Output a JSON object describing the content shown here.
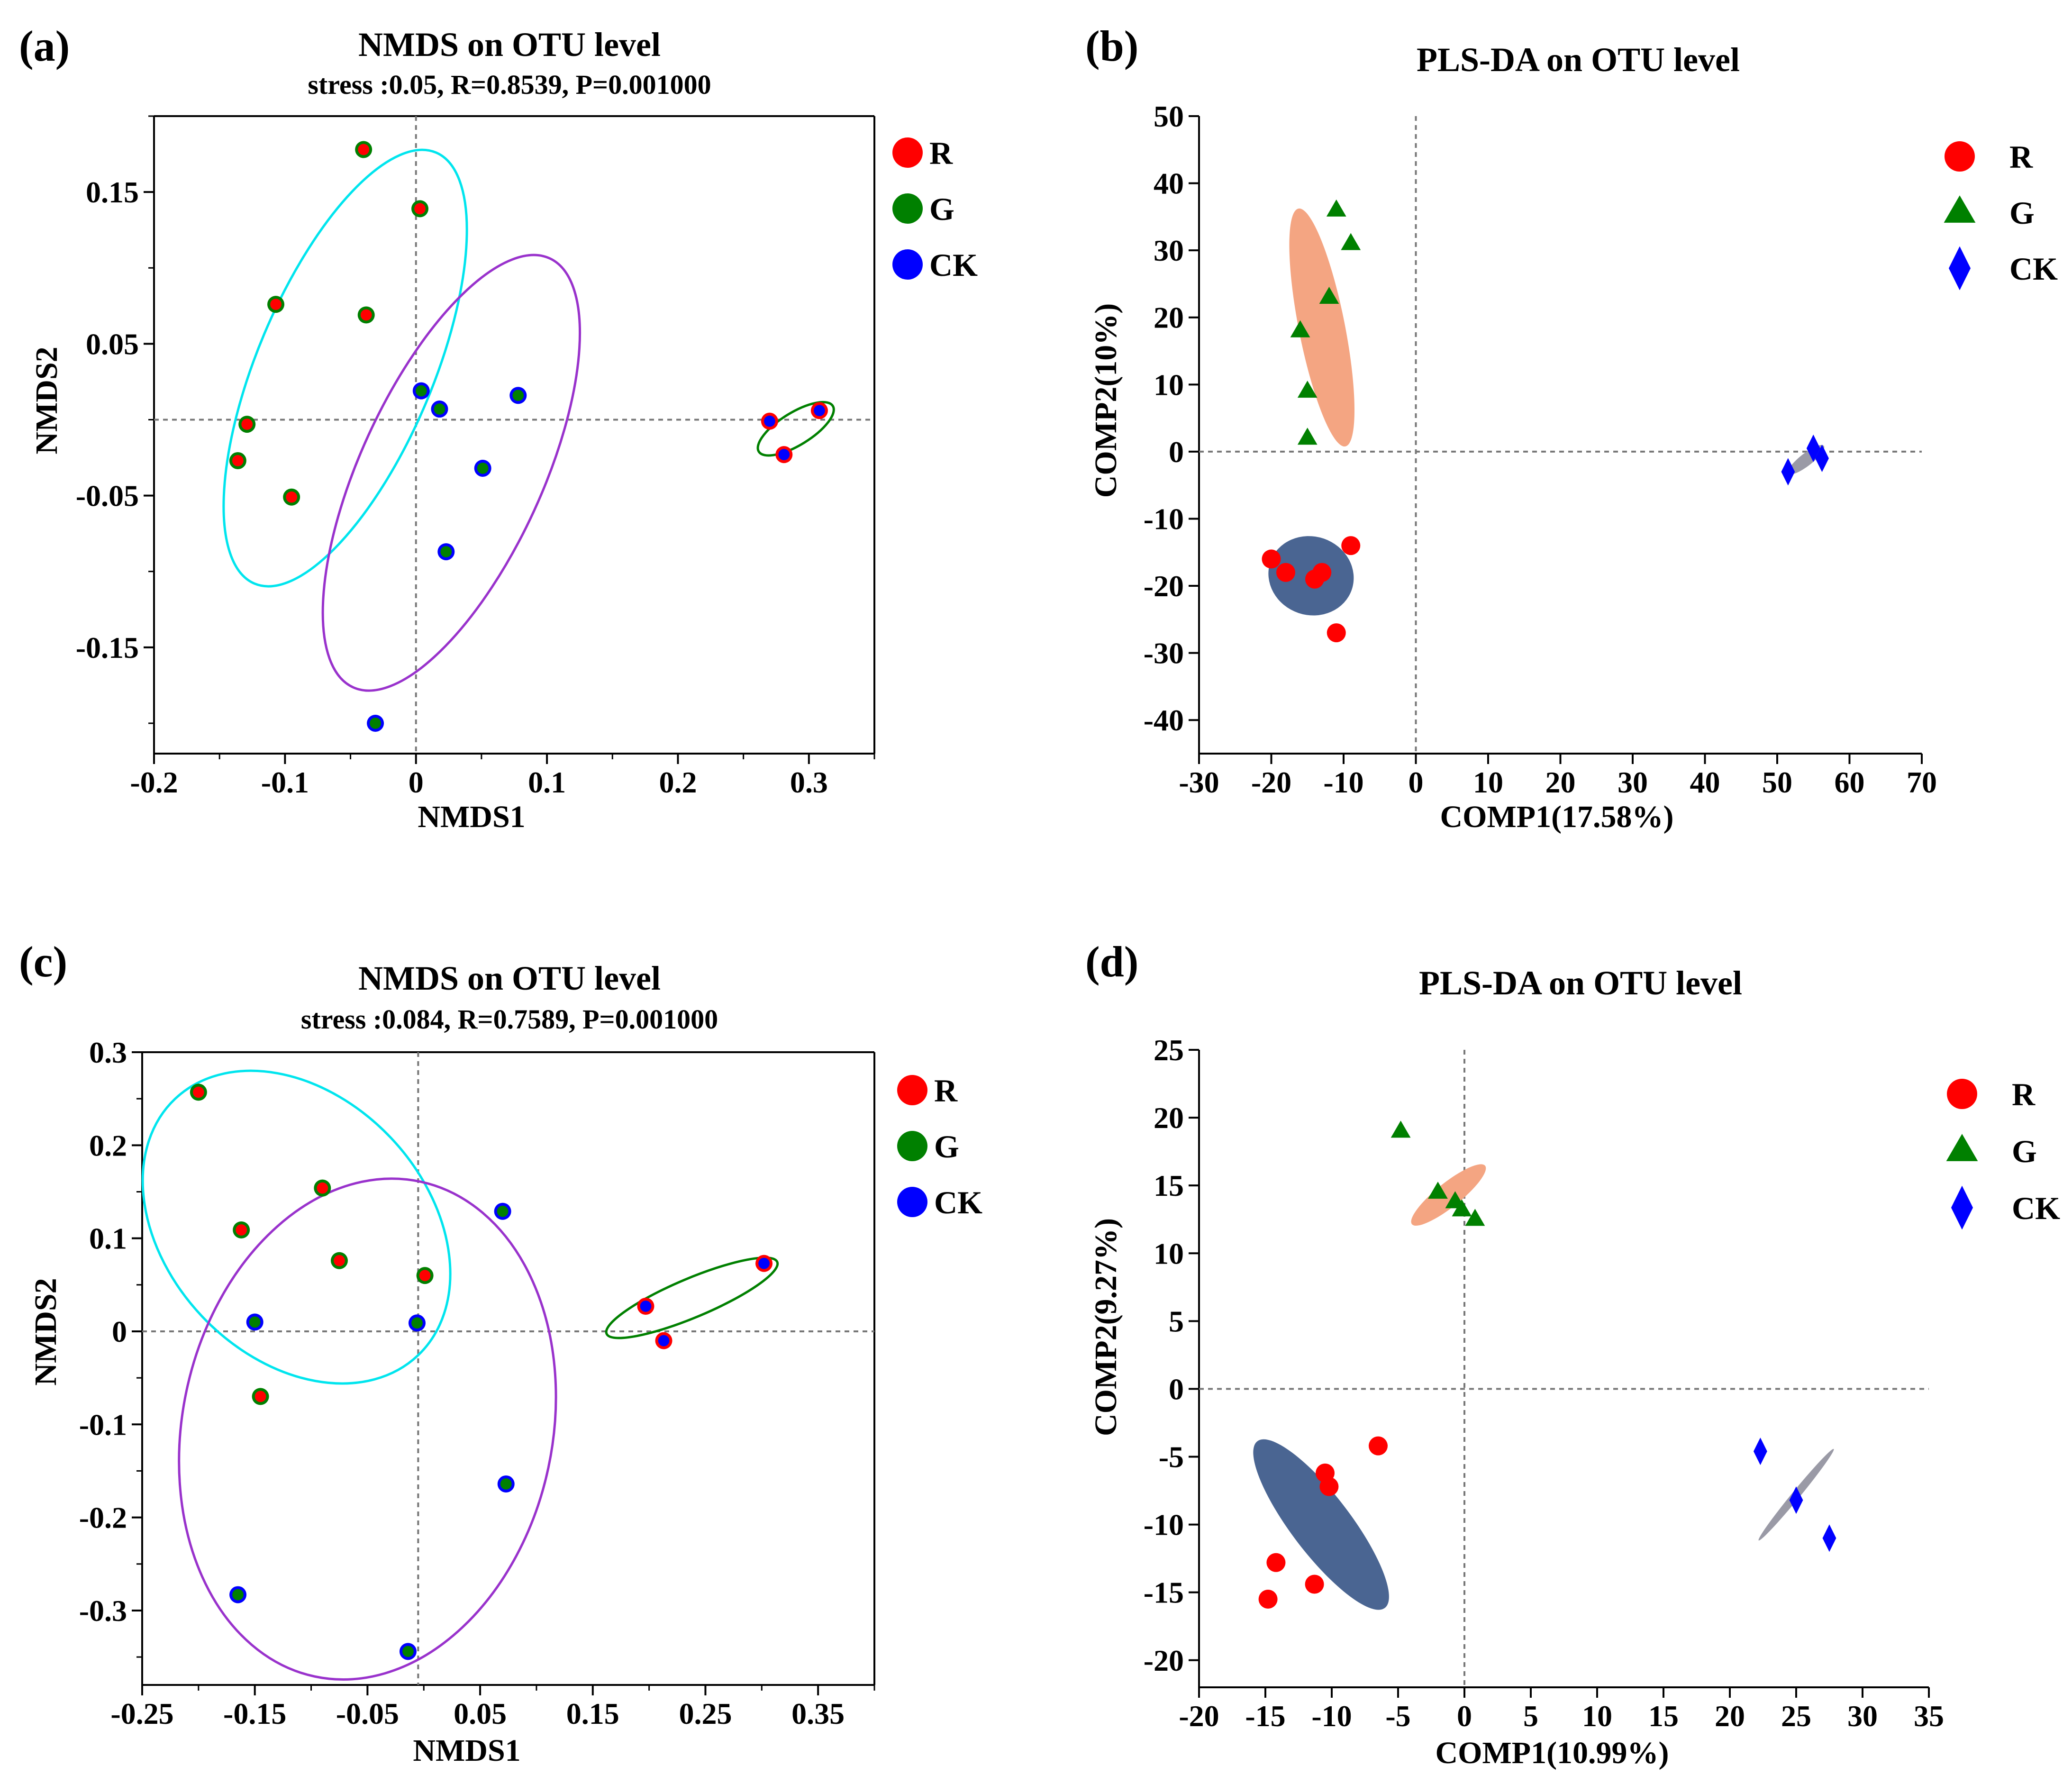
{
  "panels": [
    {
      "id": "a",
      "panel_label": "(a)",
      "title": "NMDS on OTU level",
      "subtitle": "stress :0.05, R=0.8539, P=0.001000",
      "xlabel": "NMDS1",
      "ylabel": "NMDS2",
      "xlim": [
        -0.2,
        0.35
      ],
      "ylim": [
        -0.22,
        0.2
      ],
      "xticks": [
        -0.2,
        -0.1,
        0,
        0.1,
        0.2,
        0.3
      ],
      "xtick_labels": [
        "-0.2",
        "-0.1",
        "0",
        "0.1",
        "0.2",
        "0.3"
      ],
      "yticks": [
        0.15,
        0.05,
        -0.05,
        -0.15
      ],
      "ytick_labels": [
        "0.15",
        "0.05",
        "-0.05",
        "-0.15"
      ],
      "legend": [
        {
          "label": "R",
          "fill": "#ff0000",
          "marker": "circle"
        },
        {
          "label": "G",
          "fill": "#008000",
          "marker": "circle"
        },
        {
          "label": "CK",
          "fill": "#0000ff",
          "marker": "circle"
        }
      ]
    },
    {
      "id": "b",
      "panel_label": "(b)",
      "title": "PLS-DA on OTU level",
      "xlabel": "COMP1(17.58%)",
      "ylabel": "COMP2(10%)",
      "xlim": [
        -30,
        70
      ],
      "ylim": [
        -45,
        50
      ],
      "xticks": [
        -30,
        -20,
        -10,
        0,
        10,
        20,
        30,
        40,
        50,
        60,
        70
      ],
      "xtick_labels": [
        "-30",
        "-20",
        "-10",
        "0",
        "10",
        "20",
        "30",
        "40",
        "50",
        "60",
        "70"
      ],
      "yticks": [
        50,
        40,
        30,
        20,
        10,
        0,
        -10,
        -20,
        -30,
        -40
      ],
      "ytick_labels": [
        "50",
        "40",
        "30",
        "20",
        "10",
        "0",
        "-10",
        "-20",
        "-30",
        "-40"
      ],
      "legend": [
        {
          "label": "R",
          "fill": "#ff0000",
          "marker": "circle"
        },
        {
          "label": "G",
          "fill": "#008000",
          "marker": "triangle"
        },
        {
          "label": "CK",
          "fill": "#0000ff",
          "marker": "diamond"
        }
      ]
    },
    {
      "id": "c",
      "panel_label": "(c)",
      "title": "NMDS on OTU level",
      "subtitle": "stress :0.084, R=0.7589, P=0.001000",
      "xlabel": "NMDS1",
      "ylabel": "NMDS2",
      "xlim": [
        -0.25,
        0.4
      ],
      "ylim": [
        -0.38,
        0.3
      ],
      "xticks": [
        -0.25,
        -0.15,
        -0.05,
        0.05,
        0.15,
        0.25,
        0.35
      ],
      "xtick_labels": [
        "-0.25",
        "-0.15",
        "-0.05",
        "0.05",
        "0.15",
        "0.25",
        "0.35"
      ],
      "yticks": [
        0.3,
        0.2,
        0.1,
        0,
        -0.1,
        -0.2,
        -0.3
      ],
      "ytick_labels": [
        "0.3",
        "0.2",
        "0.1",
        "0",
        "-0.1",
        "-0.2",
        "-0.3"
      ],
      "legend": [
        {
          "label": "R",
          "fill": "#ff0000",
          "marker": "circle"
        },
        {
          "label": "G",
          "fill": "#008000",
          "marker": "circle"
        },
        {
          "label": "CK",
          "fill": "#0000ff",
          "marker": "circle"
        }
      ]
    },
    {
      "id": "d",
      "panel_label": "(d)",
      "title": "PLS-DA on OTU level",
      "xlabel": "COMP1(10.99%)",
      "ylabel": "COMP2(9.27%)",
      "xlim": [
        -20,
        35
      ],
      "ylim": [
        -22,
        25
      ],
      "xticks": [
        -20,
        -15,
        -10,
        -5,
        0,
        5,
        10,
        15,
        20,
        25,
        30,
        35
      ],
      "xtick_labels": [
        "-20",
        "-15",
        "-10",
        "-5",
        "0",
        "5",
        "10",
        "15",
        "20",
        "25",
        "30",
        "35"
      ],
      "yticks": [
        25,
        20,
        15,
        10,
        5,
        0,
        -5,
        -10,
        -15,
        -20
      ],
      "ytick_labels": [
        "25",
        "20",
        "15",
        "10",
        "5",
        "0",
        "-5",
        "-10",
        "-15",
        "-20"
      ],
      "legend": [
        {
          "label": "R",
          "fill": "#ff0000",
          "marker": "circle"
        },
        {
          "label": "G",
          "fill": "#008000",
          "marker": "triangle"
        },
        {
          "label": "CK",
          "fill": "#0000ff",
          "marker": "diamond"
        }
      ]
    }
  ],
  "chart_data": [
    {
      "type": "scatter",
      "panel": "a",
      "title": "NMDS on OTU level",
      "subtitle": "stress :0.05, R=0.8539, P=0.001000",
      "xlabel": "NMDS1",
      "ylabel": "NMDS2",
      "xlim": [
        -0.2,
        0.35
      ],
      "ylim": [
        -0.22,
        0.2
      ],
      "reference_lines": {
        "x": 0,
        "y": 0
      },
      "series": [
        {
          "name": "G",
          "marker": "circle",
          "fill": "#ff0000",
          "edge": "#008000",
          "ring": "#00e5ee",
          "points": [
            [
              -0.04,
              0.178
            ],
            [
              0.003,
              0.139
            ],
            [
              -0.107,
              0.076
            ],
            [
              -0.038,
              0.069
            ],
            [
              -0.129,
              -0.003
            ],
            [
              -0.136,
              -0.027
            ],
            [
              -0.095,
              -0.051
            ]
          ],
          "ellipse": {
            "cx": -0.054,
            "cy": 0.034,
            "rx": 0.158,
            "ry": 0.065,
            "angle_deg": 64
          }
        },
        {
          "name": "CK",
          "marker": "circle",
          "fill": "#008000",
          "edge": "#0000ff",
          "ring": "#9932cc",
          "points": [
            [
              0.004,
              0.019
            ],
            [
              0.018,
              0.007
            ],
            [
              0.078,
              0.016
            ],
            [
              0.051,
              -0.032
            ],
            [
              0.023,
              -0.087
            ],
            [
              -0.031,
              -0.2
            ]
          ],
          "ellipse": {
            "cx": 0.027,
            "cy": -0.035,
            "rx": 0.16,
            "ry": 0.067,
            "angle_deg": 62
          }
        },
        {
          "name": "R",
          "marker": "circle",
          "fill": "#0000ff",
          "edge": "#ff0000",
          "ring": "#008000",
          "points": [
            [
              0.27,
              -0.001
            ],
            [
              0.308,
              0.006
            ],
            [
              0.281,
              -0.023
            ]
          ],
          "ellipse": {
            "cx": 0.29,
            "cy": -0.006,
            "rx": 0.032,
            "ry": 0.011,
            "angle_deg": 28
          }
        }
      ]
    },
    {
      "type": "scatter",
      "panel": "b",
      "title": "PLS-DA on OTU level",
      "xlabel": "COMP1(17.58%)",
      "ylabel": "COMP2(10%)",
      "xlim": [
        -30,
        70
      ],
      "ylim": [
        -45,
        50
      ],
      "reference_lines": {
        "x": 0,
        "y": 0
      },
      "series": [
        {
          "name": "R",
          "marker": "circle",
          "fill": "#ff0000",
          "points": [
            [
              -20,
              -16
            ],
            [
              -18,
              -18
            ],
            [
              -14,
              -19
            ],
            [
              -13,
              -18
            ],
            [
              -9,
              -14
            ],
            [
              -11,
              -27
            ]
          ],
          "ellipse": {
            "cx": -14.5,
            "cy": -18.5,
            "rx": 6,
            "ry": 5.8,
            "angle_deg": -20,
            "fill": "#4a6592"
          }
        },
        {
          "name": "G",
          "marker": "triangle",
          "fill": "#008000",
          "points": [
            [
              -11,
              36
            ],
            [
              -9,
              31
            ],
            [
              -12,
              23
            ],
            [
              -16,
              18
            ],
            [
              -15,
              9
            ],
            [
              -15,
              2
            ]
          ],
          "ellipse": {
            "cx": -13,
            "cy": 18.5,
            "rx": 3.2,
            "ry": 18,
            "angle_deg": 12,
            "fill": "#f4a582"
          }
        },
        {
          "name": "CK",
          "marker": "diamond",
          "fill": "#0000ff",
          "points": [
            [
              51.5,
              -3
            ],
            [
              55,
              0.5
            ],
            [
              56.2,
              -1
            ]
          ],
          "ellipse": {
            "cx": 54,
            "cy": -1.2,
            "rx": 3.2,
            "ry": 0.9,
            "angle_deg": 40,
            "fill": "#9a9aa6"
          }
        }
      ]
    },
    {
      "type": "scatter",
      "panel": "c",
      "title": "NMDS on OTU level",
      "subtitle": "stress :0.084, R=0.7589, P=0.001000",
      "xlabel": "NMDS1",
      "ylabel": "NMDS2",
      "xlim": [
        -0.25,
        0.4
      ],
      "ylim": [
        -0.38,
        0.3
      ],
      "reference_lines": {
        "x": -0.005,
        "y": 0
      },
      "series": [
        {
          "name": "G",
          "marker": "circle",
          "fill": "#ff0000",
          "edge": "#008000",
          "ring": "#00e5ee",
          "points": [
            [
              -0.2,
              0.257
            ],
            [
              -0.09,
              0.154
            ],
            [
              -0.162,
              0.109
            ],
            [
              -0.075,
              0.076
            ],
            [
              0.001,
              0.06
            ],
            [
              -0.145,
              -0.07
            ]
          ],
          "ellipse": {
            "cx": -0.113,
            "cy": 0.112,
            "rx": 0.175,
            "ry": 0.123,
            "angle_deg": -52
          }
        },
        {
          "name": "CK",
          "marker": "circle",
          "fill": "#008000",
          "edge": "#0000ff",
          "ring": "#9932cc",
          "points": [
            [
              -0.15,
              0.01
            ],
            [
              -0.006,
              0.009
            ],
            [
              0.07,
              0.129
            ],
            [
              0.073,
              -0.164
            ],
            [
              -0.165,
              -0.283
            ],
            [
              -0.014,
              -0.344
            ]
          ],
          "ellipse": {
            "cx": -0.05,
            "cy": -0.105,
            "rx": 0.27,
            "ry": 0.165,
            "angle_deg": 80
          }
        },
        {
          "name": "R",
          "marker": "circle",
          "fill": "#0000ff",
          "edge": "#ff0000",
          "ring": "#008000",
          "points": [
            [
              0.197,
              0.027
            ],
            [
              0.213,
              -0.01
            ],
            [
              0.302,
              0.073
            ]
          ],
          "ellipse": {
            "cx": 0.238,
            "cy": 0.036,
            "rx": 0.085,
            "ry": 0.02,
            "angle_deg": 27
          }
        }
      ]
    },
    {
      "type": "scatter",
      "panel": "d",
      "title": "PLS-DA on OTU level",
      "xlabel": "COMP1(10.99%)",
      "ylabel": "COMP2(9.27%)",
      "xlim": [
        -20,
        35
      ],
      "ylim": [
        -22,
        25
      ],
      "reference_lines": {
        "x": 0,
        "y": 0
      },
      "series": [
        {
          "name": "R",
          "marker": "circle",
          "fill": "#ff0000",
          "points": [
            [
              -6.5,
              -4.2
            ],
            [
              -10.5,
              -6.2
            ],
            [
              -10.2,
              -7.2
            ],
            [
              -14.2,
              -12.8
            ],
            [
              -11.3,
              -14.4
            ],
            [
              -14.8,
              -15.5
            ]
          ],
          "ellipse": {
            "cx": -10.8,
            "cy": -10,
            "rx": 7.8,
            "ry": 2.2,
            "angle_deg": -52,
            "fill": "#4a6592"
          }
        },
        {
          "name": "G",
          "marker": "triangle",
          "fill": "#008000",
          "points": [
            [
              -4.8,
              19
            ],
            [
              -2,
              14.5
            ],
            [
              -0.7,
              13.8
            ],
            [
              -0.2,
              13.2
            ],
            [
              0.8,
              12.5
            ]
          ],
          "ellipse": {
            "cx": -1.2,
            "cy": 14.3,
            "rx": 3.5,
            "ry": 0.9,
            "angle_deg": 38,
            "fill": "#f4a582"
          }
        },
        {
          "name": "CK",
          "marker": "diamond",
          "fill": "#0000ff",
          "points": [
            [
              22.3,
              -4.6
            ],
            [
              25,
              -8.2
            ],
            [
              27.5,
              -11
            ]
          ],
          "ellipse": {
            "cx": 25,
            "cy": -7.8,
            "rx": 4.4,
            "ry": 0.3,
            "angle_deg": 50,
            "fill": "#9a9aa6"
          }
        }
      ]
    }
  ]
}
